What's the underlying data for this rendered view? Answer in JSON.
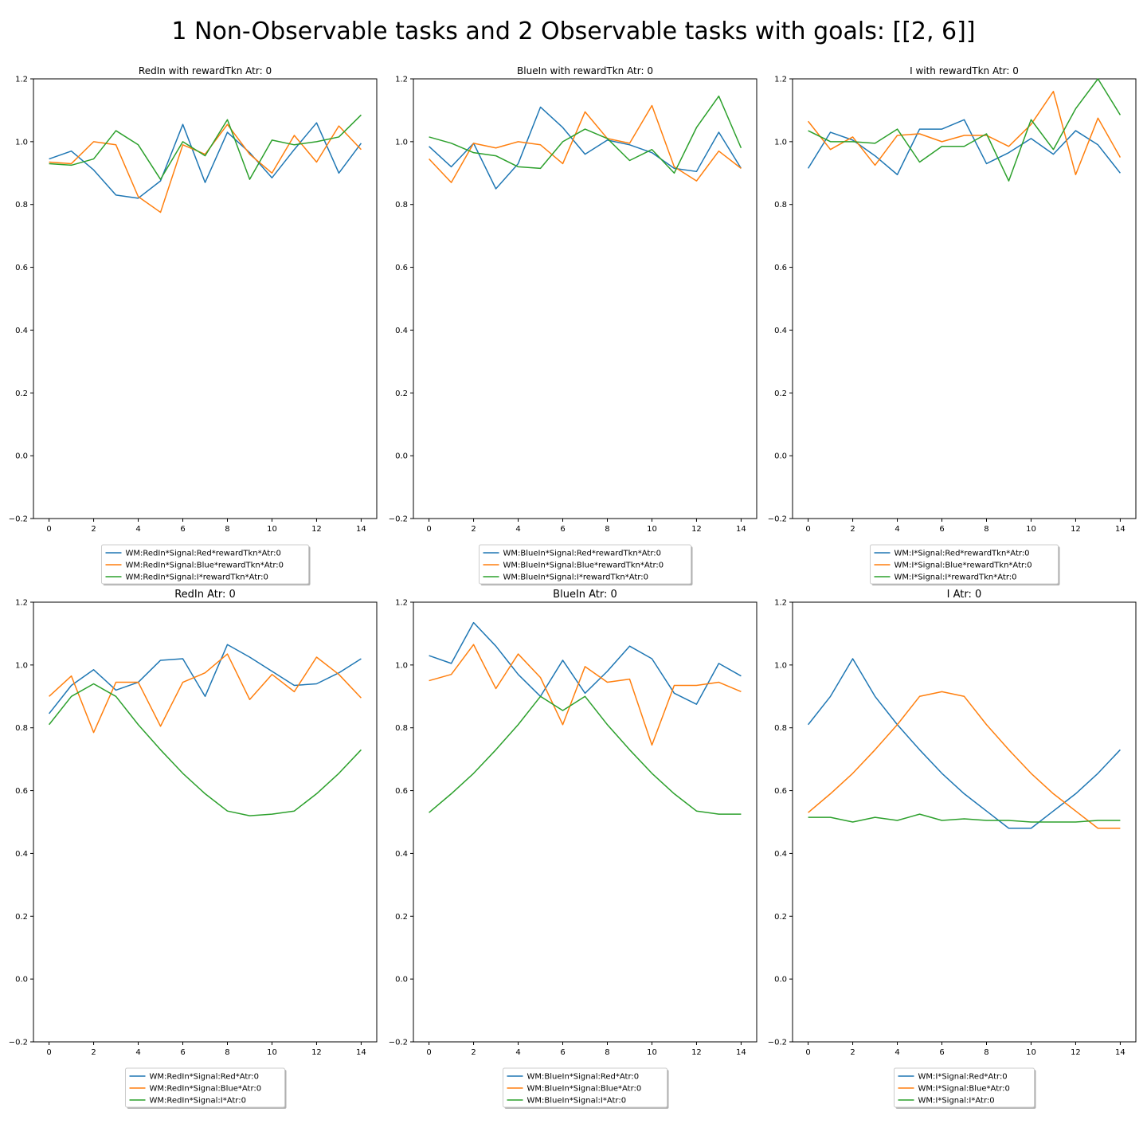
{
  "figure": {
    "suptitle": "1 Non-Observable tasks and 2 Observable tasks with goals: [[2, 6]]",
    "colors": {
      "series_0": "#1f77b4",
      "series_1": "#ff7f0e",
      "series_2": "#2ca02c"
    }
  },
  "chart_data": [
    {
      "type": "line",
      "title": "RedIn with rewardTkn Atr: 0",
      "xlabel": "",
      "ylabel": "",
      "xlim": [
        -0.7,
        14.7
      ],
      "ylim": [
        -0.2,
        1.2
      ],
      "xticks": [
        0,
        2,
        4,
        6,
        8,
        10,
        12,
        14
      ],
      "yticks": [
        -0.2,
        0.0,
        0.2,
        0.4,
        0.6,
        0.8,
        1.0,
        1.2
      ],
      "grid": false,
      "legend_position": "below",
      "x": [
        0,
        1,
        2,
        3,
        4,
        5,
        6,
        7,
        8,
        9,
        10,
        11,
        12,
        13,
        14
      ],
      "series": [
        {
          "name": "WM:RedIn*Signal:Red*rewardTkn*Atr:0",
          "color": "#1f77b4",
          "values": [
            0.945,
            0.97,
            0.91,
            0.83,
            0.82,
            0.875,
            1.055,
            0.87,
            1.03,
            0.965,
            0.885,
            0.975,
            1.06,
            0.9,
            0.995
          ]
        },
        {
          "name": "WM:RedIn*Signal:Blue*rewardTkn*Atr:0",
          "color": "#ff7f0e",
          "values": [
            0.935,
            0.93,
            1.0,
            0.99,
            0.825,
            0.775,
            0.99,
            0.96,
            1.055,
            0.96,
            0.9,
            1.02,
            0.935,
            1.05,
            0.975
          ]
        },
        {
          "name": "WM:RedIn*Signal:I*rewardTkn*Atr:0",
          "color": "#2ca02c",
          "values": [
            0.93,
            0.925,
            0.945,
            1.035,
            0.99,
            0.88,
            1.0,
            0.955,
            1.07,
            0.88,
            1.005,
            0.99,
            1.0,
            1.015,
            1.085
          ]
        }
      ]
    },
    {
      "type": "line",
      "title": "BlueIn with rewardTkn Atr: 0",
      "xlabel": "",
      "ylabel": "",
      "xlim": [
        -0.7,
        14.7
      ],
      "ylim": [
        -0.2,
        1.2
      ],
      "xticks": [
        0,
        2,
        4,
        6,
        8,
        10,
        12,
        14
      ],
      "yticks": [
        -0.2,
        0.0,
        0.2,
        0.4,
        0.6,
        0.8,
        1.0,
        1.2
      ],
      "grid": false,
      "legend_position": "below",
      "x": [
        0,
        1,
        2,
        3,
        4,
        5,
        6,
        7,
        8,
        9,
        10,
        11,
        12,
        13,
        14
      ],
      "series": [
        {
          "name": "WM:BlueIn*Signal:Red*rewardTkn*Atr:0",
          "color": "#1f77b4",
          "values": [
            0.985,
            0.92,
            0.995,
            0.85,
            0.93,
            1.11,
            1.045,
            0.96,
            1.005,
            0.99,
            0.965,
            0.915,
            0.905,
            1.03,
            0.915
          ]
        },
        {
          "name": "WM:BlueIn*Signal:Blue*rewardTkn*Atr:0",
          "color": "#ff7f0e",
          "values": [
            0.945,
            0.87,
            0.995,
            0.98,
            1.0,
            0.99,
            0.93,
            1.095,
            1.01,
            0.995,
            1.115,
            0.92,
            0.875,
            0.97,
            0.915
          ]
        },
        {
          "name": "WM:BlueIn*Signal:I*rewardTkn*Atr:0",
          "color": "#2ca02c",
          "values": [
            1.015,
            0.995,
            0.965,
            0.955,
            0.92,
            0.915,
            1.0,
            1.04,
            1.01,
            0.94,
            0.975,
            0.9,
            1.045,
            1.145,
            0.98
          ]
        }
      ]
    },
    {
      "type": "line",
      "title": "I with rewardTkn Atr: 0",
      "xlabel": "",
      "ylabel": "",
      "xlim": [
        -0.7,
        14.7
      ],
      "ylim": [
        -0.2,
        1.2
      ],
      "xticks": [
        0,
        2,
        4,
        6,
        8,
        10,
        12,
        14
      ],
      "yticks": [
        -0.2,
        0.0,
        0.2,
        0.4,
        0.6,
        0.8,
        1.0,
        1.2
      ],
      "grid": false,
      "legend_position": "below",
      "x": [
        0,
        1,
        2,
        3,
        4,
        5,
        6,
        7,
        8,
        9,
        10,
        11,
        12,
        13,
        14
      ],
      "series": [
        {
          "name": "WM:I*Signal:Red*rewardTkn*Atr:0",
          "color": "#1f77b4",
          "values": [
            0.915,
            1.03,
            1.005,
            0.955,
            0.895,
            1.04,
            1.04,
            1.07,
            0.93,
            0.965,
            1.01,
            0.96,
            1.035,
            0.99,
            0.9
          ]
        },
        {
          "name": "WM:I*Signal:Blue*rewardTkn*Atr:0",
          "color": "#ff7f0e",
          "values": [
            1.065,
            0.975,
            1.015,
            0.925,
            1.02,
            1.025,
            1.0,
            1.02,
            1.02,
            0.985,
            1.055,
            1.16,
            0.895,
            1.075,
            0.95
          ]
        },
        {
          "name": "WM:I*Signal:I*rewardTkn*Atr:0",
          "color": "#2ca02c",
          "values": [
            1.035,
            1.0,
            1.0,
            0.995,
            1.04,
            0.935,
            0.985,
            0.985,
            1.025,
            0.875,
            1.07,
            0.975,
            1.105,
            1.2,
            1.085
          ]
        }
      ]
    },
    {
      "type": "line",
      "title": "RedIn Atr: 0",
      "xlabel": "",
      "ylabel": "",
      "xlim": [
        -0.7,
        14.7
      ],
      "ylim": [
        -0.2,
        1.2
      ],
      "xticks": [
        0,
        2,
        4,
        6,
        8,
        10,
        12,
        14
      ],
      "yticks": [
        -0.2,
        0.0,
        0.2,
        0.4,
        0.6,
        0.8,
        1.0,
        1.2
      ],
      "grid": false,
      "legend_position": "below",
      "x": [
        0,
        1,
        2,
        3,
        4,
        5,
        6,
        7,
        8,
        9,
        10,
        11,
        12,
        13,
        14
      ],
      "series": [
        {
          "name": "WM:RedIn*Signal:Red*Atr:0",
          "color": "#1f77b4",
          "values": [
            0.845,
            0.935,
            0.985,
            0.92,
            0.945,
            1.015,
            1.02,
            0.9,
            1.065,
            1.025,
            0.98,
            0.935,
            0.94,
            0.975,
            1.02
          ]
        },
        {
          "name": "WM:RedIn*Signal:Blue*Atr:0",
          "color": "#ff7f0e",
          "values": [
            0.9,
            0.965,
            0.785,
            0.945,
            0.945,
            0.805,
            0.945,
            0.975,
            1.035,
            0.89,
            0.97,
            0.915,
            1.025,
            0.97,
            0.895
          ]
        },
        {
          "name": "WM:RedIn*Signal:I*Atr:0",
          "color": "#2ca02c",
          "values": [
            0.81,
            0.9,
            0.94,
            0.9,
            0.81,
            0.73,
            0.655,
            0.59,
            0.535,
            0.52,
            0.525,
            0.535,
            0.59,
            0.655,
            0.73
          ]
        }
      ]
    },
    {
      "type": "line",
      "title": "BlueIn Atr: 0",
      "xlabel": "",
      "ylabel": "",
      "xlim": [
        -0.7,
        14.7
      ],
      "ylim": [
        -0.2,
        1.2
      ],
      "xticks": [
        0,
        2,
        4,
        6,
        8,
        10,
        12,
        14
      ],
      "yticks": [
        -0.2,
        0.0,
        0.2,
        0.4,
        0.6,
        0.8,
        1.0,
        1.2
      ],
      "grid": false,
      "legend_position": "below",
      "x": [
        0,
        1,
        2,
        3,
        4,
        5,
        6,
        7,
        8,
        9,
        10,
        11,
        12,
        13,
        14
      ],
      "series": [
        {
          "name": "WM:BlueIn*Signal:Red*Atr:0",
          "color": "#1f77b4",
          "values": [
            1.03,
            1.005,
            1.135,
            1.06,
            0.97,
            0.9,
            1.015,
            0.91,
            0.98,
            1.06,
            1.02,
            0.91,
            0.875,
            1.005,
            0.965
          ]
        },
        {
          "name": "WM:BlueIn*Signal:Blue*Atr:0",
          "color": "#ff7f0e",
          "values": [
            0.95,
            0.97,
            1.065,
            0.925,
            1.035,
            0.96,
            0.81,
            0.995,
            0.945,
            0.955,
            0.745,
            0.935,
            0.935,
            0.945,
            0.915
          ]
        },
        {
          "name": "WM:BlueIn*Signal:I*Atr:0",
          "color": "#2ca02c",
          "values": [
            0.53,
            0.59,
            0.655,
            0.73,
            0.81,
            0.9,
            0.855,
            0.9,
            0.81,
            0.73,
            0.655,
            0.59,
            0.535,
            0.525,
            0.525
          ]
        }
      ]
    },
    {
      "type": "line",
      "title": "I Atr: 0",
      "xlabel": "",
      "ylabel": "",
      "xlim": [
        -0.7,
        14.7
      ],
      "ylim": [
        -0.2,
        1.2
      ],
      "xticks": [
        0,
        2,
        4,
        6,
        8,
        10,
        12,
        14
      ],
      "yticks": [
        -0.2,
        0.0,
        0.2,
        0.4,
        0.6,
        0.8,
        1.0,
        1.2
      ],
      "grid": false,
      "legend_position": "below",
      "x": [
        0,
        1,
        2,
        3,
        4,
        5,
        6,
        7,
        8,
        9,
        10,
        11,
        12,
        13,
        14
      ],
      "series": [
        {
          "name": "WM:I*Signal:Red*Atr:0",
          "color": "#1f77b4",
          "values": [
            0.81,
            0.9,
            1.02,
            0.9,
            0.81,
            0.73,
            0.655,
            0.59,
            0.535,
            0.48,
            0.48,
            0.535,
            0.59,
            0.655,
            0.73
          ]
        },
        {
          "name": "WM:I*Signal:Blue*Atr:0",
          "color": "#ff7f0e",
          "values": [
            0.53,
            0.59,
            0.655,
            0.73,
            0.81,
            0.9,
            0.915,
            0.9,
            0.81,
            0.73,
            0.655,
            0.59,
            0.535,
            0.48,
            0.48
          ]
        },
        {
          "name": "WM:I*Signal:I*Atr:0",
          "color": "#2ca02c",
          "values": [
            0.515,
            0.515,
            0.5,
            0.515,
            0.505,
            0.525,
            0.505,
            0.51,
            0.505,
            0.505,
            0.5,
            0.5,
            0.5,
            0.505,
            0.505
          ]
        }
      ]
    }
  ]
}
